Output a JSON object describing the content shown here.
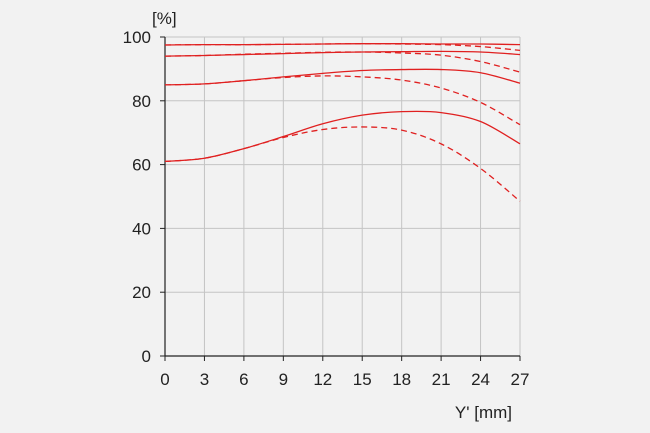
{
  "chart_data": {
    "type": "line",
    "title": "",
    "xlabel": "Y' [mm]",
    "ylabel": "[%]",
    "xlim": [
      0,
      27
    ],
    "ylim": [
      0,
      100
    ],
    "xticks": [
      0,
      3,
      6,
      9,
      12,
      15,
      18,
      21,
      24,
      27
    ],
    "yticks": [
      0,
      20,
      40,
      60,
      80,
      100
    ],
    "grid": true,
    "line_color": "#e02020",
    "series": [
      {
        "style": "solid",
        "x": [
          0,
          3,
          6,
          9,
          12,
          15,
          18,
          21,
          24,
          27
        ],
        "y": [
          97.5,
          97.6,
          97.6,
          97.7,
          97.8,
          97.9,
          97.9,
          97.8,
          97.8,
          97.6
        ]
      },
      {
        "style": "dashed",
        "x": [
          0,
          3,
          6,
          9,
          12,
          15,
          18,
          21,
          24,
          27
        ],
        "y": [
          97.5,
          97.6,
          97.6,
          97.7,
          97.8,
          97.9,
          97.8,
          97.6,
          97.0,
          95.8
        ]
      },
      {
        "style": "solid",
        "x": [
          0,
          3,
          6,
          9,
          12,
          15,
          18,
          21,
          24,
          27
        ],
        "y": [
          94.0,
          94.2,
          94.5,
          94.8,
          95.1,
          95.3,
          95.4,
          95.5,
          95.3,
          94.5
        ]
      },
      {
        "style": "dashed",
        "x": [
          0,
          3,
          6,
          9,
          12,
          15,
          18,
          21,
          24,
          27
        ],
        "y": [
          94.0,
          94.2,
          94.6,
          94.9,
          95.2,
          95.3,
          95.0,
          94.3,
          92.3,
          89.0
        ]
      },
      {
        "style": "solid",
        "x": [
          0,
          3,
          6,
          9,
          12,
          15,
          18,
          21,
          24,
          27
        ],
        "y": [
          85.0,
          85.3,
          86.3,
          87.5,
          88.6,
          89.5,
          89.8,
          89.8,
          88.8,
          85.5
        ]
      },
      {
        "style": "dashed",
        "x": [
          0,
          3,
          6,
          9,
          12,
          15,
          18,
          21,
          24,
          27
        ],
        "y": [
          85.0,
          85.3,
          86.3,
          87.3,
          87.8,
          87.5,
          86.5,
          84.0,
          79.5,
          72.5
        ]
      },
      {
        "style": "solid",
        "x": [
          0,
          3,
          6,
          9,
          12,
          15,
          18,
          21,
          24,
          27
        ],
        "y": [
          61.0,
          62.0,
          65.0,
          68.8,
          72.8,
          75.5,
          76.6,
          76.3,
          73.5,
          66.5
        ]
      },
      {
        "style": "dashed",
        "x": [
          0,
          3,
          6,
          9,
          12,
          15,
          18,
          21,
          24,
          27
        ],
        "y": [
          61.0,
          62.0,
          65.0,
          68.5,
          71.0,
          71.8,
          70.8,
          66.5,
          58.8,
          48.5
        ]
      }
    ]
  }
}
